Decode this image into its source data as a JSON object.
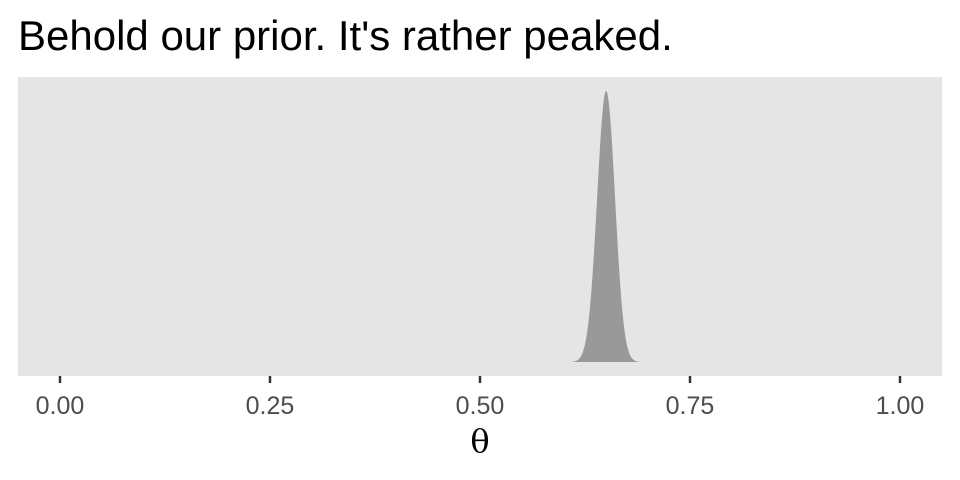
{
  "chart_data": {
    "type": "area",
    "title": "Behold our prior. It's rather peaked.",
    "xlabel": "θ",
    "ylabel": "",
    "xlim": [
      -0.05,
      1.05
    ],
    "x_ticks": [
      0,
      0.25,
      0.5,
      0.75,
      1
    ],
    "x_tick_labels": [
      "0.00",
      "0.25",
      "0.50",
      "0.75",
      "1.00"
    ],
    "y_axis_visible": false,
    "grid": false,
    "series": [
      {
        "distribution": "beta",
        "alpha": 1300,
        "beta": 700,
        "x_range": [
          0.61,
          0.69
        ],
        "fill": "#999999"
      }
    ],
    "panel_background": "#e5e5e5",
    "tick_color": "#333333"
  }
}
